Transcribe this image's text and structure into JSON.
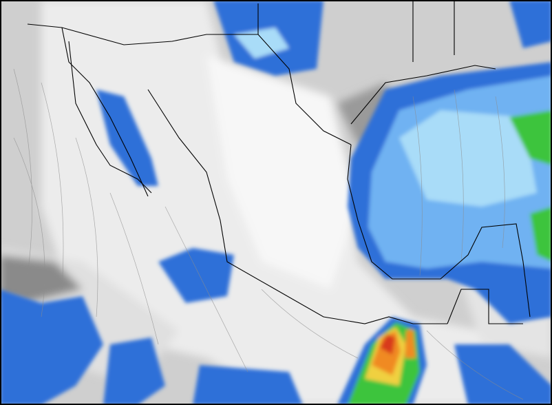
{
  "map": {
    "colors": {
      "background_gray": "#c8c8c8",
      "light_gray": "#e6e6e6",
      "white": "#f7f7f7",
      "dark_gray": "#8a8a8a",
      "blue": "#2f6fd8",
      "light_blue": "#6fb2f2",
      "pale_blue": "#a9dcf8",
      "green": "#3cc43c",
      "yellow": "#f0d040",
      "orange": "#f08a20",
      "red": "#d83a1a",
      "border": "#000000",
      "streamline": "#8c8c8c"
    }
  }
}
